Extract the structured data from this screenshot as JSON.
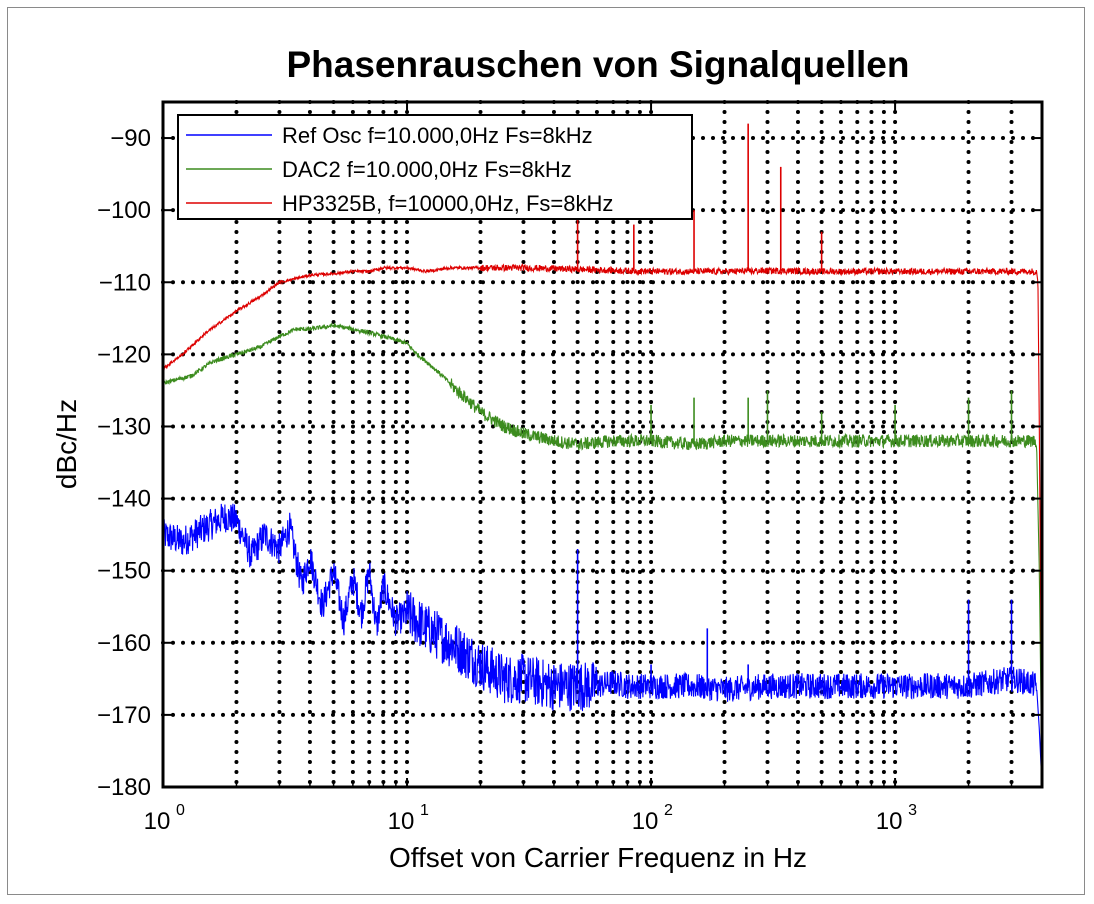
{
  "chart_data": {
    "type": "line",
    "title": "Phasenrauschen von Signalquellen",
    "xlabel": "Offset von Carrier Frequenz in Hz",
    "ylabel": "dBc/Hz",
    "x_scale": "log",
    "xlim": [
      1,
      4000
    ],
    "ylim": [
      -180,
      -85
    ],
    "x_ticks": [
      {
        "value": 1,
        "base": "10",
        "exp": "0"
      },
      {
        "value": 10,
        "base": "10",
        "exp": "1"
      },
      {
        "value": 100,
        "base": "10",
        "exp": "2"
      },
      {
        "value": 1000,
        "base": "10",
        "exp": "3"
      }
    ],
    "y_ticks": [
      -90,
      -100,
      -110,
      -120,
      -130,
      -140,
      -150,
      -160,
      -170,
      -180
    ],
    "y_tick_labels": [
      "−90",
      "−100",
      "−110",
      "−120",
      "−130",
      "−140",
      "−150",
      "−160",
      "−170",
      "−180"
    ],
    "grid": true,
    "grid_style": "dotted",
    "legend_position": "top-left",
    "series": [
      {
        "name": "Ref Osc f=10.000,0Hz Fs=8kHz",
        "color": "#0000ff",
        "x": [
          1,
          1.2,
          1.5,
          1.8,
          2,
          2.3,
          2.6,
          3,
          3.3,
          3.7,
          4,
          4.5,
          5,
          5.5,
          6,
          6.5,
          7,
          7.5,
          8,
          9,
          10,
          12,
          15,
          20,
          25,
          30,
          40,
          50,
          60,
          70,
          80,
          100,
          150,
          200,
          300,
          500,
          700,
          1000,
          1500,
          2000,
          3000,
          3500,
          3800,
          3900,
          4000
        ],
        "y": [
          -145,
          -146,
          -144,
          -142.5,
          -143,
          -148,
          -145,
          -147,
          -144,
          -152,
          -148,
          -155,
          -150,
          -157,
          -151,
          -156,
          -150,
          -158,
          -152,
          -157,
          -156,
          -158,
          -160,
          -163,
          -165,
          -165,
          -166,
          -166,
          -166,
          -165.5,
          -166,
          -166,
          -166,
          -166.5,
          -166,
          -166,
          -166,
          -166,
          -166,
          -166,
          -165,
          -165.5,
          -166,
          -172,
          -180
        ],
        "spikes": [
          {
            "x": 50,
            "y": -147
          },
          {
            "x": 100,
            "y": -163
          },
          {
            "x": 170,
            "y": -158
          },
          {
            "x": 250,
            "y": -163
          },
          {
            "x": 1000,
            "y": -165
          },
          {
            "x": 2000,
            "y": -154
          },
          {
            "x": 3000,
            "y": -154
          }
        ]
      },
      {
        "name": "DAC2 f=10.000,0Hz Fs=8kHz",
        "color": "#3c8c1e",
        "x": [
          1,
          1.3,
          1.6,
          2,
          2.5,
          3,
          3.5,
          4,
          5,
          6,
          7,
          8,
          9,
          10,
          11,
          12,
          14,
          16,
          18,
          20,
          25,
          30,
          40,
          50,
          70,
          100,
          150,
          200,
          300,
          500,
          1000,
          2000,
          3000,
          3500,
          3800,
          3900,
          4000
        ],
        "y": [
          -124,
          -123,
          -121,
          -120,
          -119,
          -117.5,
          -116.5,
          -116.5,
          -116,
          -116.5,
          -117,
          -117.5,
          -118,
          -118.5,
          -120,
          -121,
          -123,
          -125,
          -126.5,
          -128,
          -130,
          -131,
          -132,
          -132.5,
          -132,
          -132,
          -132.5,
          -132,
          -132,
          -132,
          -132,
          -132,
          -132,
          -132,
          -132,
          -150,
          -180
        ],
        "spikes": [
          {
            "x": 100,
            "y": -127
          },
          {
            "x": 150,
            "y": -126
          },
          {
            "x": 250,
            "y": -126
          },
          {
            "x": 300,
            "y": -125
          },
          {
            "x": 500,
            "y": -128
          },
          {
            "x": 1000,
            "y": -127
          },
          {
            "x": 2000,
            "y": -126
          },
          {
            "x": 3000,
            "y": -125
          }
        ]
      },
      {
        "name": "HP3325B, f=10000,0Hz, Fs=8kHz",
        "color": "#dd0000",
        "x": [
          1,
          1.2,
          1.5,
          2,
          2.5,
          3,
          3.5,
          4,
          5,
          6,
          7,
          8,
          10,
          12,
          15,
          20,
          30,
          50,
          100,
          200,
          300,
          500,
          1000,
          2000,
          3000,
          3700,
          3800,
          3850,
          3900,
          4000
        ],
        "y": [
          -122,
          -120,
          -117,
          -114,
          -112,
          -110,
          -109.5,
          -109,
          -108.8,
          -108.5,
          -108.5,
          -108,
          -108,
          -108.5,
          -108,
          -108,
          -108,
          -108.2,
          -108.5,
          -108.5,
          -108.4,
          -108.5,
          -108.5,
          -108.5,
          -108.5,
          -108.5,
          -108.5,
          -110,
          -130,
          -180
        ],
        "spikes": [
          {
            "x": 50,
            "y": -100
          },
          {
            "x": 85,
            "y": -102
          },
          {
            "x": 150,
            "y": -100
          },
          {
            "x": 250,
            "y": -88
          },
          {
            "x": 340,
            "y": -94
          },
          {
            "x": 500,
            "y": -103
          }
        ]
      }
    ]
  }
}
